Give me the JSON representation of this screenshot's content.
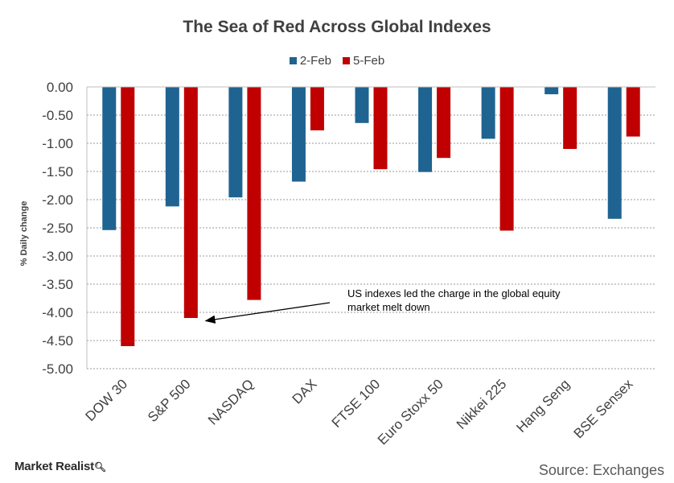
{
  "chart_data": {
    "type": "bar",
    "title": "The Sea of Red Across  Global  Indexes",
    "ylabel": "% Daily change",
    "xlabel": "",
    "categories": [
      "DOW 30",
      "S&P 500",
      "NASDAQ",
      "DAX",
      "FTSE 100",
      "Euro Stoxx 50",
      "Nikkei 225",
      "Hang Seng",
      "BSE Sensex"
    ],
    "series": [
      {
        "name": "2-Feb",
        "color": "#1f6391",
        "values": [
          -2.54,
          -2.12,
          -1.96,
          -1.68,
          -0.64,
          -1.51,
          -0.92,
          -0.13,
          -2.34
        ]
      },
      {
        "name": "5-Feb",
        "color": "#c00000",
        "values": [
          -4.6,
          -4.1,
          -3.78,
          -0.77,
          -1.46,
          -1.26,
          -2.55,
          -1.1,
          -0.88
        ]
      }
    ],
    "ylim": [
      -5.0,
      0.0
    ],
    "yticks": [
      "0.00",
      "-0.50",
      "-1.00",
      "-1.50",
      "-2.00",
      "-2.50",
      "-3.00",
      "-3.50",
      "-4.00",
      "-4.50",
      "-5.00"
    ],
    "grid": true,
    "legend_position": "top-center",
    "annotation": {
      "line1": "US indexes led the charge in the global equity",
      "line2": "market melt down",
      "target_category": "S&P 500",
      "target_value": -4.15
    }
  },
  "footer": {
    "logo": "Market Realist",
    "logo_icon": "magnifier-icon",
    "source": "Source: Exchanges"
  }
}
